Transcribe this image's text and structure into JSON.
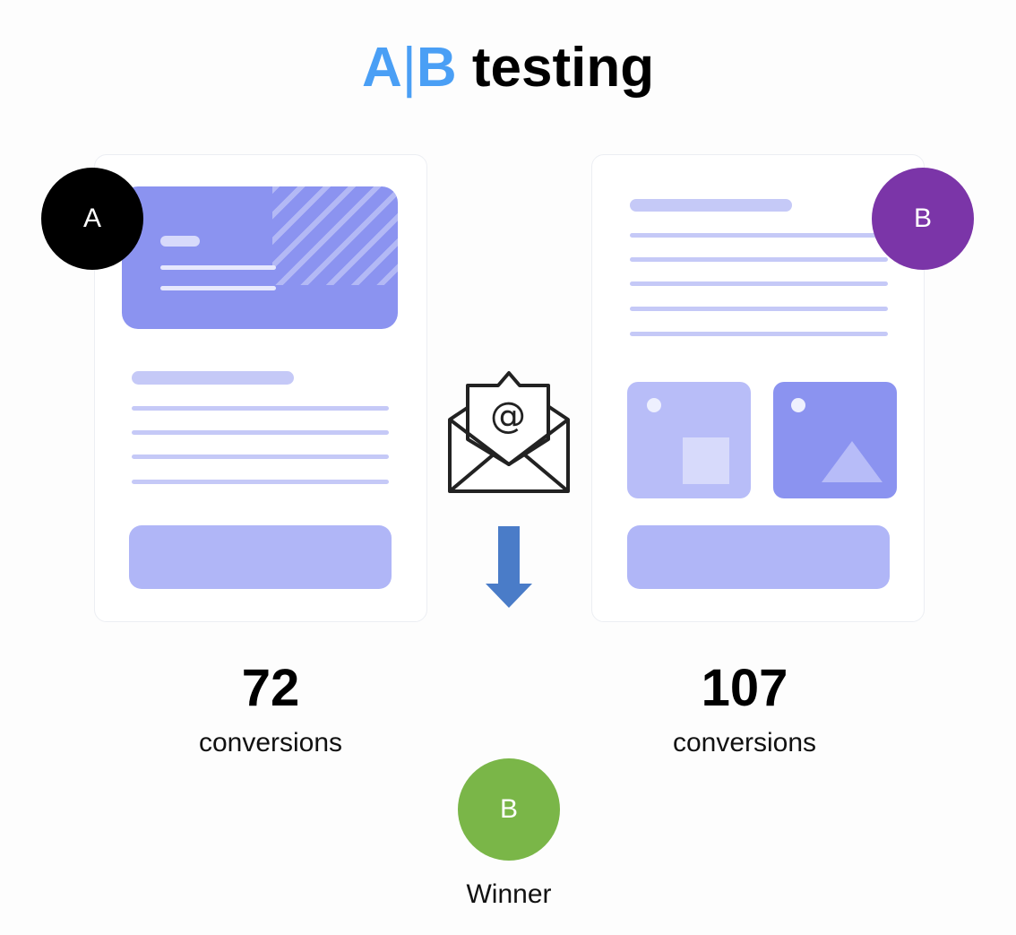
{
  "title": {
    "a": "A",
    "sep": "|",
    "b": "B",
    "rest": " testing",
    "accent": "#4a9ff5"
  },
  "variant_a": {
    "badge": "A",
    "badge_color": "#000000",
    "conversions": "72",
    "label": "conversions"
  },
  "variant_b": {
    "badge": "B",
    "badge_color": "#7b35a8",
    "conversions": "107",
    "label": "conversions"
  },
  "center_icons": [
    "email-open-at-icon",
    "arrow-down-icon"
  ],
  "winner": {
    "badge": "B",
    "badge_color": "#7ab648",
    "label": "Winner"
  }
}
